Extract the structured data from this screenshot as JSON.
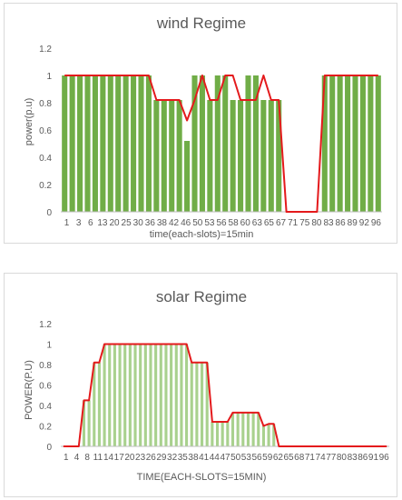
{
  "chart_data": [
    {
      "type": "bar",
      "title": "wind Regime",
      "xlabel": "time(each-slots)=15min",
      "ylabel": "power(p.u)",
      "ylim": [
        0,
        1.2
      ],
      "yticks": [
        "0",
        "0.2",
        "0.4",
        "0.6",
        "0.8",
        "1",
        "1.2"
      ],
      "xtick_labels": [
        "1",
        "3",
        "6",
        "13",
        "20",
        "25",
        "30",
        "36",
        "38",
        "42",
        "46",
        "50",
        "53",
        "56",
        "58",
        "60",
        "63",
        "65",
        "67",
        "71",
        "75",
        "80",
        "83",
        "86",
        "89",
        "92",
        "96"
      ],
      "colors": {
        "bar": "#70ad47",
        "line": "#e41a1c"
      },
      "grid": false,
      "legend": "none",
      "series": [
        {
          "type": "bar",
          "values": [
            1,
            1,
            1,
            1,
            1,
            1,
            1,
            1,
            1,
            1,
            1,
            1,
            0.82,
            0.82,
            0.82,
            0.82,
            0.52,
            1,
            1,
            0.82,
            1,
            1,
            0.82,
            0.82,
            1,
            1,
            0.82,
            0.82,
            0.82,
            0,
            0,
            0,
            0,
            0,
            1,
            1,
            1,
            1,
            1,
            1,
            1,
            1
          ]
        },
        {
          "type": "line",
          "values": [
            1,
            1,
            1,
            1,
            1,
            1,
            1,
            1,
            1,
            1,
            1,
            1,
            0.82,
            0.82,
            0.82,
            0.82,
            0.67,
            0.82,
            1,
            0.82,
            0.82,
            1,
            1,
            0.82,
            0.82,
            0.82,
            1,
            0.82,
            0.82,
            0,
            0,
            0,
            0,
            0,
            1,
            1,
            1,
            1,
            1,
            1,
            1,
            1
          ]
        }
      ]
    },
    {
      "type": "bar",
      "title": "solar Regime",
      "xlabel": "TIME(EACH-SLOTS=15MIN)",
      "ylabel": "POWER(P.U)",
      "ylim": [
        0,
        1.2
      ],
      "yticks": [
        "0",
        "0.2",
        "0.4",
        "0.6",
        "0.8",
        "1",
        "1.2"
      ],
      "xtick_labels": [
        "1",
        "4",
        "8",
        "11",
        "14",
        "17",
        "20",
        "23",
        "26",
        "29",
        "32",
        "35",
        "38",
        "41",
        "44",
        "47",
        "50",
        "53",
        "56",
        "59",
        "62",
        "65",
        "68",
        "71",
        "74",
        "77",
        "80",
        "83",
        "86",
        "91",
        "96"
      ],
      "colors": {
        "bar": "#a9d18e",
        "line": "#e41a1c"
      },
      "grid": false,
      "legend": "none",
      "series": [
        {
          "type": "bar",
          "values": [
            0,
            0,
            0,
            0,
            0.45,
            0.45,
            0.82,
            0.82,
            1,
            1,
            1,
            1,
            1,
            1,
            1,
            1,
            1,
            1,
            1,
            1,
            1,
            1,
            1,
            1,
            1,
            0.82,
            0.82,
            0.82,
            0.82,
            0.24,
            0.24,
            0.24,
            0.24,
            0.33,
            0.33,
            0.33,
            0.33,
            0.33,
            0.33,
            0.2,
            0.22,
            0.22,
            0,
            0,
            0,
            0,
            0,
            0,
            0,
            0,
            0,
            0,
            0,
            0,
            0,
            0,
            0,
            0,
            0,
            0,
            0,
            0,
            0,
            0
          ]
        },
        {
          "type": "line",
          "values": [
            0,
            0,
            0,
            0,
            0.45,
            0.45,
            0.82,
            0.82,
            1,
            1,
            1,
            1,
            1,
            1,
            1,
            1,
            1,
            1,
            1,
            1,
            1,
            1,
            1,
            1,
            1,
            0.82,
            0.82,
            0.82,
            0.82,
            0.24,
            0.24,
            0.24,
            0.24,
            0.33,
            0.33,
            0.33,
            0.33,
            0.33,
            0.33,
            0.2,
            0.22,
            0.22,
            0,
            0,
            0,
            0,
            0,
            0,
            0,
            0,
            0,
            0,
            0,
            0,
            0,
            0,
            0,
            0,
            0,
            0,
            0,
            0,
            0,
            0
          ]
        }
      ]
    }
  ]
}
